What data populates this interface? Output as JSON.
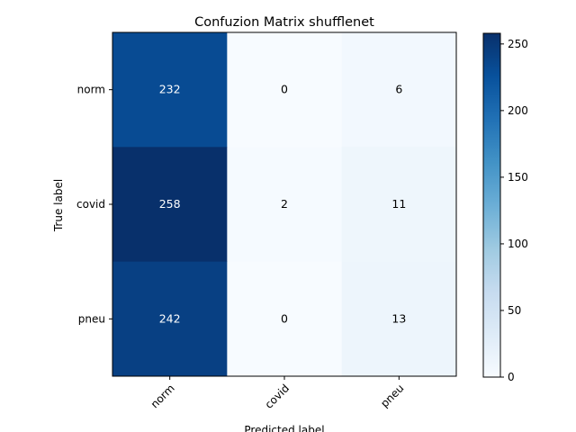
{
  "chart_data": {
    "type": "heatmap",
    "title": "Confuzion Matrix shufflenet",
    "xlabel": "Predicted label",
    "ylabel": "True label",
    "x_categories": [
      "norm",
      "covid",
      "pneu"
    ],
    "y_categories": [
      "norm",
      "covid",
      "pneu"
    ],
    "values": [
      [
        232,
        0,
        6
      ],
      [
        258,
        2,
        11
      ],
      [
        242,
        0,
        13
      ]
    ],
    "colormap": "Blues",
    "colorbar": {
      "min": 0,
      "max": 258,
      "ticks": [
        0,
        50,
        100,
        150,
        200,
        250
      ]
    },
    "grid": false
  }
}
